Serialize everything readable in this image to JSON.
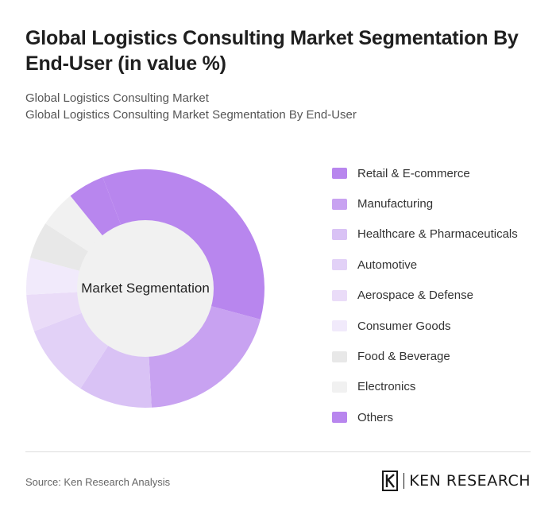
{
  "header": {
    "title": "Global Logistics Consulting Market Segmentation By End-User (in value %)",
    "subtitle_line1": "Global Logistics Consulting Market",
    "subtitle_line2": "Global Logistics Consulting Market Segmentation By End-User"
  },
  "chart_data": {
    "type": "pie",
    "variant": "donut",
    "center_label": "Market Segmentation",
    "legend_position": "right",
    "categories": [
      "Retail & E-commerce",
      "Manufacturing",
      "Healthcare & Pharmaceuticals",
      "Automotive",
      "Aerospace & Defense",
      "Consumer Goods",
      "Food & Beverage",
      "Electronics",
      "Others"
    ],
    "values": [
      35,
      20,
      10,
      10,
      5,
      5,
      5,
      5,
      5
    ],
    "colors": [
      "#b886ee",
      "#c8a2f1",
      "#d9c2f5",
      "#e2d1f7",
      "#eadcf8",
      "#f1eafb",
      "#e8e8e8",
      "#f1f1f1",
      "#b886ee"
    ]
  },
  "footer": {
    "source": "Source: Ken Research Analysis",
    "logo_text": "KEN RESEARCH",
    "logo_mark": "K"
  }
}
